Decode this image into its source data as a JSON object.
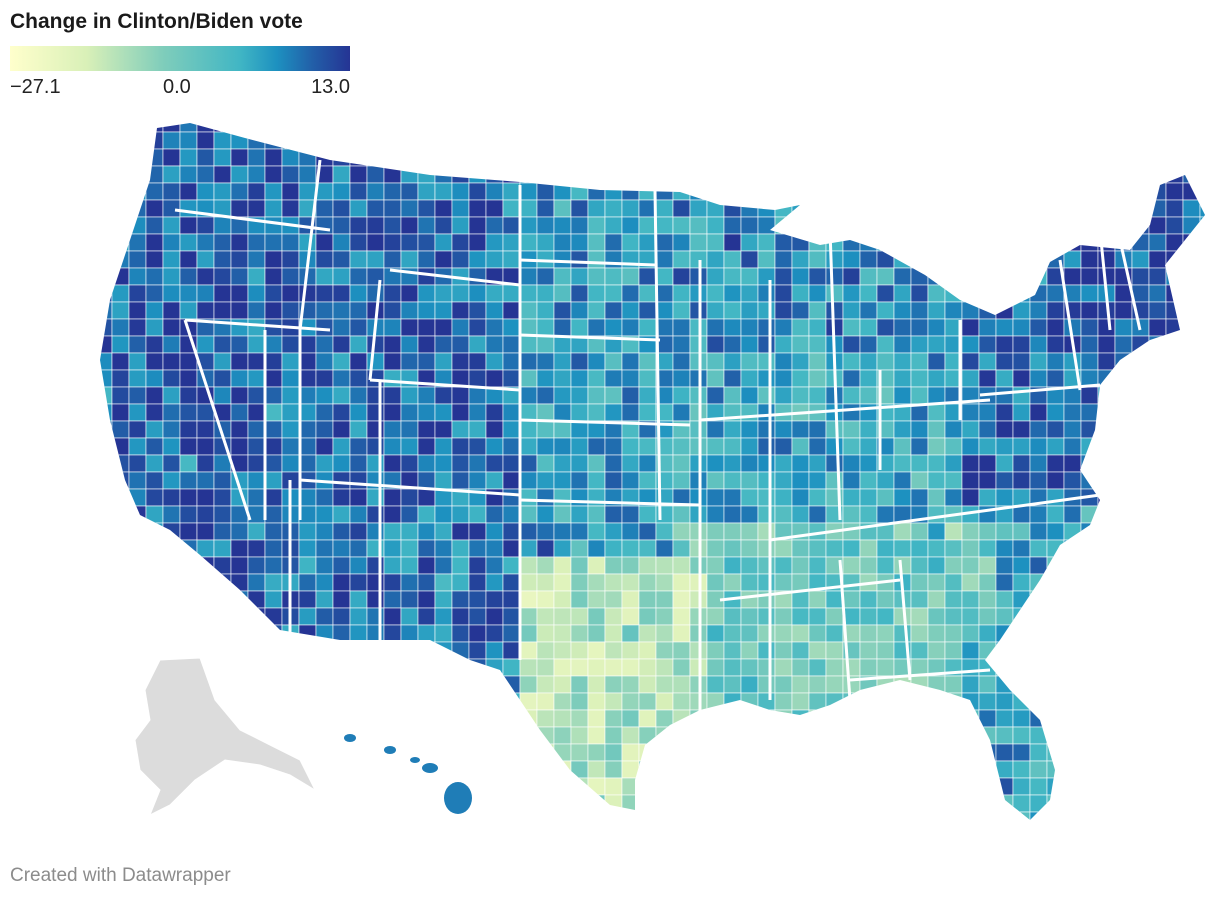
{
  "title": "Change in Clinton/Biden vote",
  "legend": {
    "min_label": "−27.1",
    "mid_label": "0.0",
    "max_label": "13.0",
    "min_value": -27.1,
    "mid_value": 0.0,
    "max_value": 13.0,
    "stops": [
      "#ffffcc",
      "#d9f0b8",
      "#7fcdbb",
      "#41b6c4",
      "#1d91c0",
      "#225ea8",
      "#253494"
    ]
  },
  "map": {
    "region": "United States counties",
    "colors": {
      "no_data": "#dcdcdc",
      "state_border": "#ffffff",
      "county_border": "#ffffff"
    },
    "regional_shift": {
      "pacific_coast": 9,
      "mountain_west": 8,
      "southwest": 7,
      "northern_plains": 3,
      "midwest": 2,
      "great_lakes": 4,
      "northeast": 10,
      "mid_atlantic": 8,
      "appalachia": 1,
      "deep_south": -6,
      "texas_south": -14,
      "florida": -2,
      "hawaii": 6
    }
  },
  "credit": "Created with Datawrapper"
}
